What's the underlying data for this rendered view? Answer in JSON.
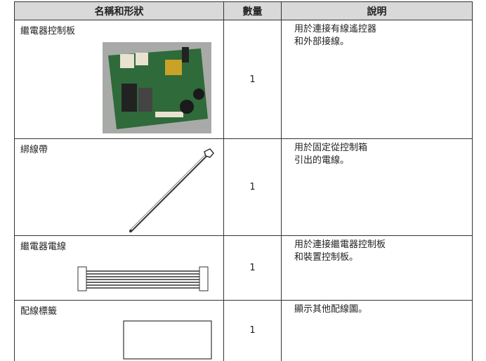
{
  "table": {
    "header": [
      "名稱和形狀",
      "數量",
      "說明"
    ],
    "rows": [
      {
        "name": "繼電器控制板",
        "quantity": 1,
        "description": [
          "用於連接有線遙控器",
          "和外部接線。"
        ]
      },
      {
        "name": "綁線帶",
        "quantity": 1,
        "description": [
          "用於固定從控制箱",
          "引出的電線。"
        ]
      },
      {
        "name": "繼電器電線",
        "quantity": 1,
        "description": [
          "用於連接繼電器控制板",
          "和裝置控制板。"
        ]
      },
      {
        "name": "配線標籤",
        "quantity": 1,
        "description": [
          "顯示其他配線圖。"
        ]
      }
    ]
  }
}
